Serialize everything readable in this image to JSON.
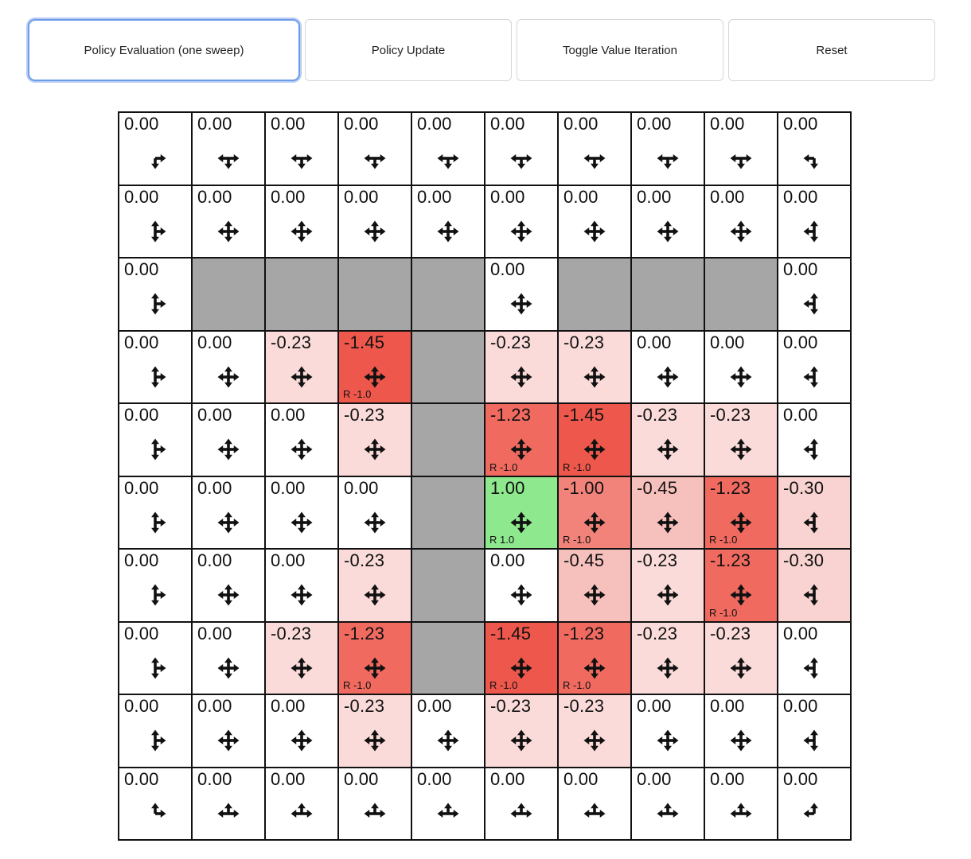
{
  "toolbar": {
    "buttons": [
      {
        "label": "Policy Evaluation (one sweep)",
        "active": true
      },
      {
        "label": "Policy Update",
        "active": false
      },
      {
        "label": "Toggle Value Iteration",
        "active": false
      },
      {
        "label": "Reset",
        "active": false
      }
    ]
  },
  "colors": {
    "accent": "#6d9bea",
    "accent_glow": "#b7cdf4",
    "wall": "#a6a6a6",
    "grid_line": "#111111",
    "values": {
      "0.00": "#ffffff",
      "-0.23": "#fadbd9",
      "-0.30": "#f8d3d1",
      "-0.45": "#f6c0bc",
      "-1.00": "#f2837a",
      "-1.23": "#f06a60",
      "-1.45": "#ee574b",
      "1.00": "#8ee88e"
    }
  },
  "grid": {
    "rows": 10,
    "cols": 10,
    "cells": [
      [
        {
          "v": "0.00",
          "a": "DR"
        },
        {
          "v": "0.00",
          "a": "DLR"
        },
        {
          "v": "0.00",
          "a": "DLR"
        },
        {
          "v": "0.00",
          "a": "DLR"
        },
        {
          "v": "0.00",
          "a": "DLR"
        },
        {
          "v": "0.00",
          "a": "DLR"
        },
        {
          "v": "0.00",
          "a": "DLR"
        },
        {
          "v": "0.00",
          "a": "DLR"
        },
        {
          "v": "0.00",
          "a": "DLR"
        },
        {
          "v": "0.00",
          "a": "DL"
        }
      ],
      [
        {
          "v": "0.00",
          "a": "UDR"
        },
        {
          "v": "0.00",
          "a": "UDLR"
        },
        {
          "v": "0.00",
          "a": "UDLR"
        },
        {
          "v": "0.00",
          "a": "UDLR"
        },
        {
          "v": "0.00",
          "a": "UDLR"
        },
        {
          "v": "0.00",
          "a": "UDLR"
        },
        {
          "v": "0.00",
          "a": "UDLR"
        },
        {
          "v": "0.00",
          "a": "UDLR"
        },
        {
          "v": "0.00",
          "a": "UDLR"
        },
        {
          "v": "0.00",
          "a": "UDL"
        }
      ],
      [
        {
          "v": "0.00",
          "a": "UDR"
        },
        {
          "w": true
        },
        {
          "w": true
        },
        {
          "w": true
        },
        {
          "w": true
        },
        {
          "v": "0.00",
          "a": "UDLR"
        },
        {
          "w": true
        },
        {
          "w": true
        },
        {
          "w": true
        },
        {
          "v": "0.00",
          "a": "UDL"
        }
      ],
      [
        {
          "v": "0.00",
          "a": "UDR"
        },
        {
          "v": "0.00",
          "a": "UDLR"
        },
        {
          "v": "-0.23",
          "a": "UDLR"
        },
        {
          "v": "-1.45",
          "a": "UDLR",
          "r": "R -1.0"
        },
        {
          "w": true
        },
        {
          "v": "-0.23",
          "a": "UDLR"
        },
        {
          "v": "-0.23",
          "a": "UDLR"
        },
        {
          "v": "0.00",
          "a": "UDLR"
        },
        {
          "v": "0.00",
          "a": "UDLR"
        },
        {
          "v": "0.00",
          "a": "UDL"
        }
      ],
      [
        {
          "v": "0.00",
          "a": "UDR"
        },
        {
          "v": "0.00",
          "a": "UDLR"
        },
        {
          "v": "0.00",
          "a": "UDLR"
        },
        {
          "v": "-0.23",
          "a": "UDLR"
        },
        {
          "w": true
        },
        {
          "v": "-1.23",
          "a": "UDLR",
          "r": "R -1.0"
        },
        {
          "v": "-1.45",
          "a": "UDLR",
          "r": "R -1.0"
        },
        {
          "v": "-0.23",
          "a": "UDLR"
        },
        {
          "v": "-0.23",
          "a": "UDLR"
        },
        {
          "v": "0.00",
          "a": "UDL"
        }
      ],
      [
        {
          "v": "0.00",
          "a": "UDR"
        },
        {
          "v": "0.00",
          "a": "UDLR"
        },
        {
          "v": "0.00",
          "a": "UDLR"
        },
        {
          "v": "0.00",
          "a": "UDLR"
        },
        {
          "w": true
        },
        {
          "v": "1.00",
          "a": "UDLR",
          "r": "R 1.0"
        },
        {
          "v": "-1.00",
          "a": "UDLR",
          "r": "R -1.0"
        },
        {
          "v": "-0.45",
          "a": "UDLR"
        },
        {
          "v": "-1.23",
          "a": "UDLR",
          "r": "R -1.0"
        },
        {
          "v": "-0.30",
          "a": "UDL"
        }
      ],
      [
        {
          "v": "0.00",
          "a": "UDR"
        },
        {
          "v": "0.00",
          "a": "UDLR"
        },
        {
          "v": "0.00",
          "a": "UDLR"
        },
        {
          "v": "-0.23",
          "a": "UDLR"
        },
        {
          "w": true
        },
        {
          "v": "0.00",
          "a": "UDLR"
        },
        {
          "v": "-0.45",
          "a": "UDLR"
        },
        {
          "v": "-0.23",
          "a": "UDLR"
        },
        {
          "v": "-1.23",
          "a": "UDLR",
          "r": "R -1.0"
        },
        {
          "v": "-0.30",
          "a": "UDL"
        }
      ],
      [
        {
          "v": "0.00",
          "a": "UDR"
        },
        {
          "v": "0.00",
          "a": "UDLR"
        },
        {
          "v": "-0.23",
          "a": "UDLR"
        },
        {
          "v": "-1.23",
          "a": "UDLR",
          "r": "R -1.0"
        },
        {
          "w": true
        },
        {
          "v": "-1.45",
          "a": "UDLR",
          "r": "R -1.0"
        },
        {
          "v": "-1.23",
          "a": "UDLR",
          "r": "R -1.0"
        },
        {
          "v": "-0.23",
          "a": "UDLR"
        },
        {
          "v": "-0.23",
          "a": "UDLR"
        },
        {
          "v": "0.00",
          "a": "UDL"
        }
      ],
      [
        {
          "v": "0.00",
          "a": "UDR"
        },
        {
          "v": "0.00",
          "a": "UDLR"
        },
        {
          "v": "0.00",
          "a": "UDLR"
        },
        {
          "v": "-0.23",
          "a": "UDLR"
        },
        {
          "v": "0.00",
          "a": "UDLR"
        },
        {
          "v": "-0.23",
          "a": "UDLR"
        },
        {
          "v": "-0.23",
          "a": "UDLR"
        },
        {
          "v": "0.00",
          "a": "UDLR"
        },
        {
          "v": "0.00",
          "a": "UDLR"
        },
        {
          "v": "0.00",
          "a": "UDL"
        }
      ],
      [
        {
          "v": "0.00",
          "a": "UR"
        },
        {
          "v": "0.00",
          "a": "ULR"
        },
        {
          "v": "0.00",
          "a": "ULR"
        },
        {
          "v": "0.00",
          "a": "ULR"
        },
        {
          "v": "0.00",
          "a": "ULR"
        },
        {
          "v": "0.00",
          "a": "ULR"
        },
        {
          "v": "0.00",
          "a": "ULR"
        },
        {
          "v": "0.00",
          "a": "ULR"
        },
        {
          "v": "0.00",
          "a": "ULR"
        },
        {
          "v": "0.00",
          "a": "UL"
        }
      ]
    ]
  }
}
